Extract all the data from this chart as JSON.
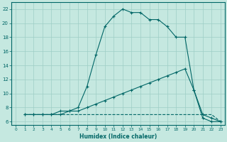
{
  "xlabel": "Humidex (Indice chaleur)",
  "xlim": [
    -0.5,
    23.5
  ],
  "ylim": [
    5.5,
    23
  ],
  "yticks": [
    6,
    8,
    10,
    12,
    14,
    16,
    18,
    20,
    22
  ],
  "xticks": [
    0,
    1,
    2,
    3,
    4,
    5,
    6,
    7,
    8,
    9,
    10,
    11,
    12,
    13,
    14,
    15,
    16,
    17,
    18,
    19,
    20,
    21,
    22,
    23
  ],
  "bg_color": "#c5e8e0",
  "line_color": "#006666",
  "grid_color": "#9ecec5",
  "line1_x": [
    1,
    2,
    3,
    4,
    5,
    6,
    7,
    8,
    9,
    10,
    11,
    12,
    13,
    14,
    15,
    16,
    17,
    18,
    19,
    20,
    21,
    22,
    23
  ],
  "line1_y": [
    7.0,
    7.0,
    7.0,
    7.0,
    7.0,
    7.0,
    7.0,
    7.0,
    7.0,
    7.0,
    7.0,
    7.0,
    7.0,
    7.0,
    7.0,
    7.0,
    7.0,
    7.0,
    7.0,
    7.0,
    7.0,
    7.0,
    6.0
  ],
  "line2_x": [
    1,
    2,
    3,
    4,
    5,
    6,
    7,
    8,
    9,
    10,
    11,
    12,
    13,
    14,
    15,
    16,
    17,
    18,
    19,
    20,
    21,
    22,
    23
  ],
  "line2_y": [
    7.0,
    7.0,
    7.0,
    7.0,
    7.5,
    7.5,
    8.0,
    11.0,
    15.5,
    19.5,
    21.0,
    22.0,
    21.5,
    21.5,
    20.5,
    20.5,
    19.5,
    18.0,
    18.0,
    10.5,
    7.0,
    6.5,
    6.0
  ],
  "line3_x": [
    1,
    2,
    3,
    4,
    5,
    6,
    7,
    8,
    9,
    10,
    11,
    12,
    13,
    14,
    15,
    16,
    17,
    18,
    19,
    20,
    21,
    22,
    23
  ],
  "line3_y": [
    7.0,
    7.0,
    7.0,
    7.0,
    7.0,
    7.5,
    7.5,
    8.0,
    8.5,
    9.0,
    9.5,
    10.0,
    10.5,
    11.0,
    11.5,
    12.0,
    12.5,
    13.0,
    13.5,
    10.5,
    6.5,
    6.0,
    6.0
  ]
}
